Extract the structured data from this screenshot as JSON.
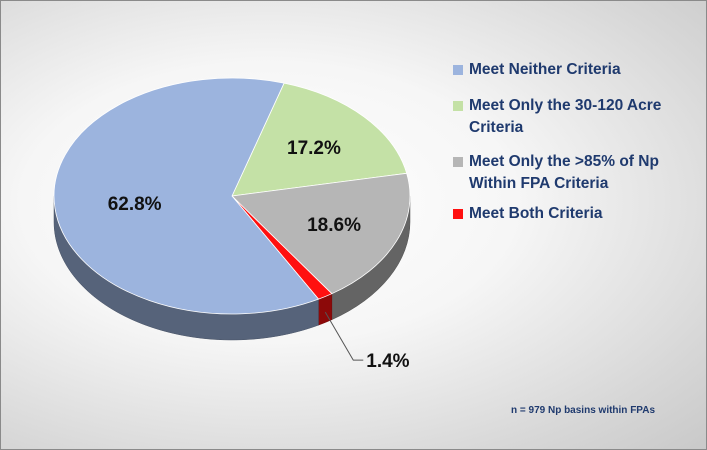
{
  "chart_data": {
    "type": "pie",
    "title": "",
    "start_angle_deg": -73,
    "slices": [
      {
        "label": "Meet Only the 30-120 Acre Criteria",
        "value": 17.2,
        "value_label": "17.2%",
        "color": "#c4e1a6"
      },
      {
        "label": "Meet Only the >85% of Np Within FPA Criteria",
        "value": 18.6,
        "value_label": "18.6%",
        "color": "#b6b6b6"
      },
      {
        "label": "Meet Both Criteria",
        "value": 1.4,
        "value_label": "1.4%",
        "color": "#ff1010"
      },
      {
        "label": "Meet Neither Criteria",
        "value": 62.8,
        "value_label": "62.8%",
        "color": "#9cb4de"
      }
    ],
    "legend": {
      "position": "right",
      "items": [
        {
          "lines": [
            "Meet Neither Criteria"
          ],
          "color": "#9cb4de"
        },
        {
          "lines": [
            "Meet Only the 30-120 Acre",
            "Criteria"
          ],
          "color": "#c4e1a6"
        },
        {
          "lines": [
            "Meet Only the >85% of Np",
            "Within FPA Criteria"
          ],
          "color": "#b6b6b6"
        },
        {
          "lines": [
            "Meet Both Criteria"
          ],
          "color": "#ff1010"
        }
      ]
    },
    "annotation": "n = 979 Np basins within FPAs"
  }
}
